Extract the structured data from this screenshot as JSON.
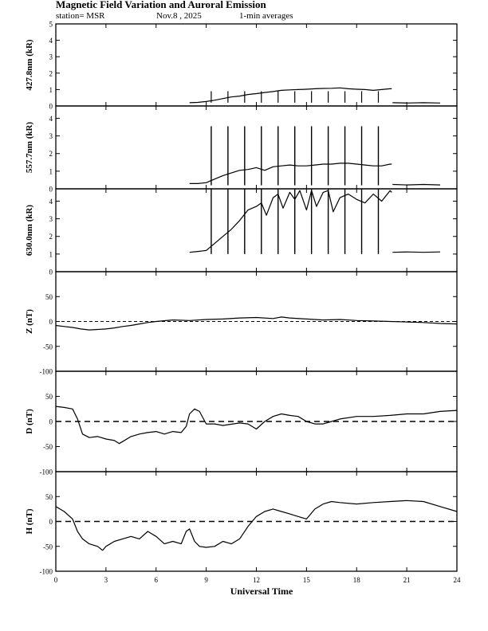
{
  "header": {
    "title": "Magnetic Field Variation and Auroral Emission",
    "station": "station= MSR",
    "date": "Nov.8 , 2025",
    "averaging": "1-min averages"
  },
  "chart_data": {
    "type": "line",
    "xlabel": "Universal Time",
    "xlim": [
      0,
      24
    ],
    "xticks": [
      0,
      3,
      6,
      9,
      12,
      15,
      18,
      21,
      24
    ],
    "panels": [
      {
        "id": "emission-4278",
        "ylabel": "427.8nm (kR)",
        "ylim": [
          0,
          5
        ],
        "yticks": [
          0,
          1,
          2,
          3,
          4,
          5
        ],
        "segments": [
          {
            "x": [
              8.0,
              8.5,
              9.0,
              9.5,
              10.0,
              10.5,
              11.0,
              11.5,
              12.0,
              12.5,
              13.0,
              13.5,
              14.0,
              14.5,
              15.0,
              15.5,
              16.0,
              16.5,
              17.0,
              17.5,
              18.0,
              18.5,
              19.0,
              19.5,
              20.0,
              20.1
            ],
            "y": [
              0.2,
              0.22,
              0.27,
              0.35,
              0.45,
              0.55,
              0.6,
              0.7,
              0.75,
              0.82,
              0.88,
              0.95,
              0.98,
              1.0,
              1.02,
              1.05,
              1.07,
              1.08,
              1.1,
              1.05,
              1.02,
              1.0,
              0.95,
              1.0,
              1.05,
              1.05
            ]
          },
          {
            "x": [
              20.15,
              21.0,
              22.0,
              23.0
            ],
            "y": [
              0.2,
              0.18,
              0.2,
              0.18
            ]
          }
        ],
        "spikes": [],
        "ticks_at_spikes": [
          9.3,
          10.3,
          11.3,
          12.3,
          13.3,
          14.3,
          15.3,
          16.3,
          17.3,
          18.3,
          19.3
        ],
        "tick_top": 0.9
      },
      {
        "id": "emission-5577",
        "ylabel": "557.7nm (kR)",
        "ylim": [
          0,
          4.7
        ],
        "yticks": [
          0,
          1,
          2,
          3,
          4
        ],
        "segments": [
          {
            "x": [
              8.0,
              8.5,
              9.0,
              9.5,
              10.0,
              10.5,
              11.0,
              11.5,
              12.0,
              12.5,
              13.0,
              13.5,
              14.0,
              14.5,
              15.0,
              15.5,
              16.0,
              16.5,
              17.0,
              17.5,
              18.0,
              18.5,
              19.0,
              19.5,
              20.0,
              20.1
            ],
            "y": [
              0.3,
              0.3,
              0.35,
              0.55,
              0.75,
              0.9,
              1.05,
              1.1,
              1.2,
              1.05,
              1.25,
              1.3,
              1.35,
              1.3,
              1.3,
              1.35,
              1.4,
              1.4,
              1.45,
              1.45,
              1.4,
              1.35,
              1.3,
              1.3,
              1.4,
              1.4
            ]
          },
          {
            "x": [
              20.15,
              21.0,
              22.0,
              23.0
            ],
            "y": [
              0.25,
              0.22,
              0.25,
              0.22
            ]
          }
        ],
        "spikes": [
          9.3,
          10.3,
          11.3,
          12.3,
          13.3,
          14.3,
          15.3,
          16.3,
          17.3,
          18.3,
          19.3
        ],
        "spike_range": [
          0.2,
          3.55
        ]
      },
      {
        "id": "emission-6300",
        "ylabel": "630.0nm (kR)",
        "ylim": [
          0,
          4.7
        ],
        "yticks": [
          0,
          1,
          2,
          3,
          4
        ],
        "segments": [
          {
            "x": [
              8.0,
              8.5,
              9.0,
              9.5,
              10.0,
              10.5,
              11.0,
              11.5,
              12.0,
              12.3,
              12.6,
              13.0,
              13.3,
              13.6,
              14.0,
              14.3,
              14.6,
              15.0,
              15.3,
              15.6,
              16.0,
              16.3,
              16.6,
              17.0,
              17.5,
              18.0,
              18.5,
              19.0,
              19.5,
              20.0,
              20.1
            ],
            "y": [
              1.1,
              1.15,
              1.2,
              1.6,
              2.0,
              2.4,
              2.9,
              3.5,
              3.7,
              3.9,
              3.2,
              4.2,
              4.4,
              3.6,
              4.5,
              4.1,
              4.6,
              3.5,
              4.6,
              3.7,
              4.5,
              4.6,
              3.4,
              4.2,
              4.4,
              4.1,
              3.9,
              4.4,
              4.0,
              4.6,
              4.5
            ]
          },
          {
            "x": [
              20.15,
              21.0,
              22.0,
              23.0
            ],
            "y": [
              1.1,
              1.12,
              1.1,
              1.12
            ]
          }
        ],
        "spikes": [
          9.3,
          10.3,
          11.3,
          12.3,
          13.3,
          14.3,
          15.3,
          16.3,
          17.3,
          18.3,
          19.3
        ],
        "spike_range": [
          1.0,
          4.7
        ]
      },
      {
        "id": "magnetic-z",
        "ylabel": "Z (nT)",
        "ylim": [
          -100,
          100
        ],
        "yticks": [
          -100,
          -50,
          0,
          50
        ],
        "baseline": 0,
        "baseline_style": "thin-dashed",
        "segments": [
          {
            "x": [
              0,
              0.5,
              1,
              1.5,
              2,
              2.5,
              3,
              3.5,
              4,
              4.5,
              5,
              5.5,
              6,
              7,
              8,
              9,
              10,
              11,
              12,
              13,
              13.5,
              14,
              15,
              16,
              17,
              18,
              19,
              20,
              21,
              22,
              23,
              24
            ],
            "y": [
              -8,
              -10,
              -12,
              -15,
              -17,
              -16,
              -15,
              -13,
              -10,
              -8,
              -5,
              -2,
              0,
              3,
              2,
              4,
              5,
              7,
              8,
              6,
              9,
              7,
              5,
              3,
              4,
              2,
              1,
              0,
              -1,
              -2,
              -4,
              -5
            ]
          }
        ],
        "spikes": []
      },
      {
        "id": "magnetic-d",
        "ylabel": "D (nT)",
        "ylim": [
          -100,
          100
        ],
        "yticks": [
          -100,
          -50,
          0,
          50
        ],
        "baseline": 0,
        "baseline_style": "dashed",
        "segments": [
          {
            "x": [
              0,
              0.5,
              1,
              1.3,
              1.6,
              2,
              2.5,
              3,
              3.5,
              3.8,
              4,
              4.5,
              5,
              5.5,
              6,
              6.5,
              7,
              7.5,
              7.8,
              8,
              8.3,
              8.6,
              9,
              9.5,
              10,
              11,
              11.5,
              12,
              12.5,
              13,
              13.5,
              14,
              14.5,
              15,
              15.5,
              16,
              16.5,
              17,
              18,
              19,
              20,
              21,
              22,
              23,
              24
            ],
            "y": [
              30,
              28,
              25,
              5,
              -25,
              -32,
              -30,
              -35,
              -38,
              -44,
              -40,
              -30,
              -25,
              -22,
              -20,
              -25,
              -20,
              -22,
              -10,
              15,
              25,
              20,
              -5,
              -5,
              -8,
              -3,
              -5,
              -15,
              0,
              10,
              15,
              12,
              10,
              0,
              -5,
              -5,
              0,
              5,
              10,
              10,
              12,
              15,
              15,
              20,
              22
            ]
          }
        ],
        "spikes": []
      },
      {
        "id": "magnetic-h",
        "ylabel": "H (nT)",
        "ylim": [
          -100,
          100
        ],
        "yticks": [
          -100,
          -50,
          0,
          50
        ],
        "baseline": 0,
        "baseline_style": "dashed",
        "segments": [
          {
            "x": [
              0,
              0.5,
              1,
              1.3,
              1.6,
              2,
              2.5,
              2.8,
              3,
              3.5,
              4,
              4.5,
              5,
              5.5,
              6,
              6.5,
              7,
              7.5,
              7.8,
              8,
              8.3,
              8.6,
              9,
              9.5,
              10,
              10.5,
              11,
              11.5,
              12,
              12.5,
              13,
              13.5,
              14,
              14.5,
              15,
              15.5,
              16,
              16.5,
              17,
              18,
              19,
              20,
              21,
              22,
              23,
              24
            ],
            "y": [
              30,
              20,
              5,
              -20,
              -35,
              -45,
              -50,
              -58,
              -50,
              -40,
              -35,
              -30,
              -35,
              -20,
              -30,
              -45,
              -40,
              -45,
              -20,
              -15,
              -40,
              -50,
              -52,
              -50,
              -40,
              -45,
              -35,
              -10,
              10,
              20,
              25,
              20,
              15,
              10,
              5,
              25,
              35,
              40,
              38,
              35,
              38,
              40,
              42,
              40,
              30,
              20
            ]
          }
        ],
        "spikes": []
      }
    ]
  }
}
